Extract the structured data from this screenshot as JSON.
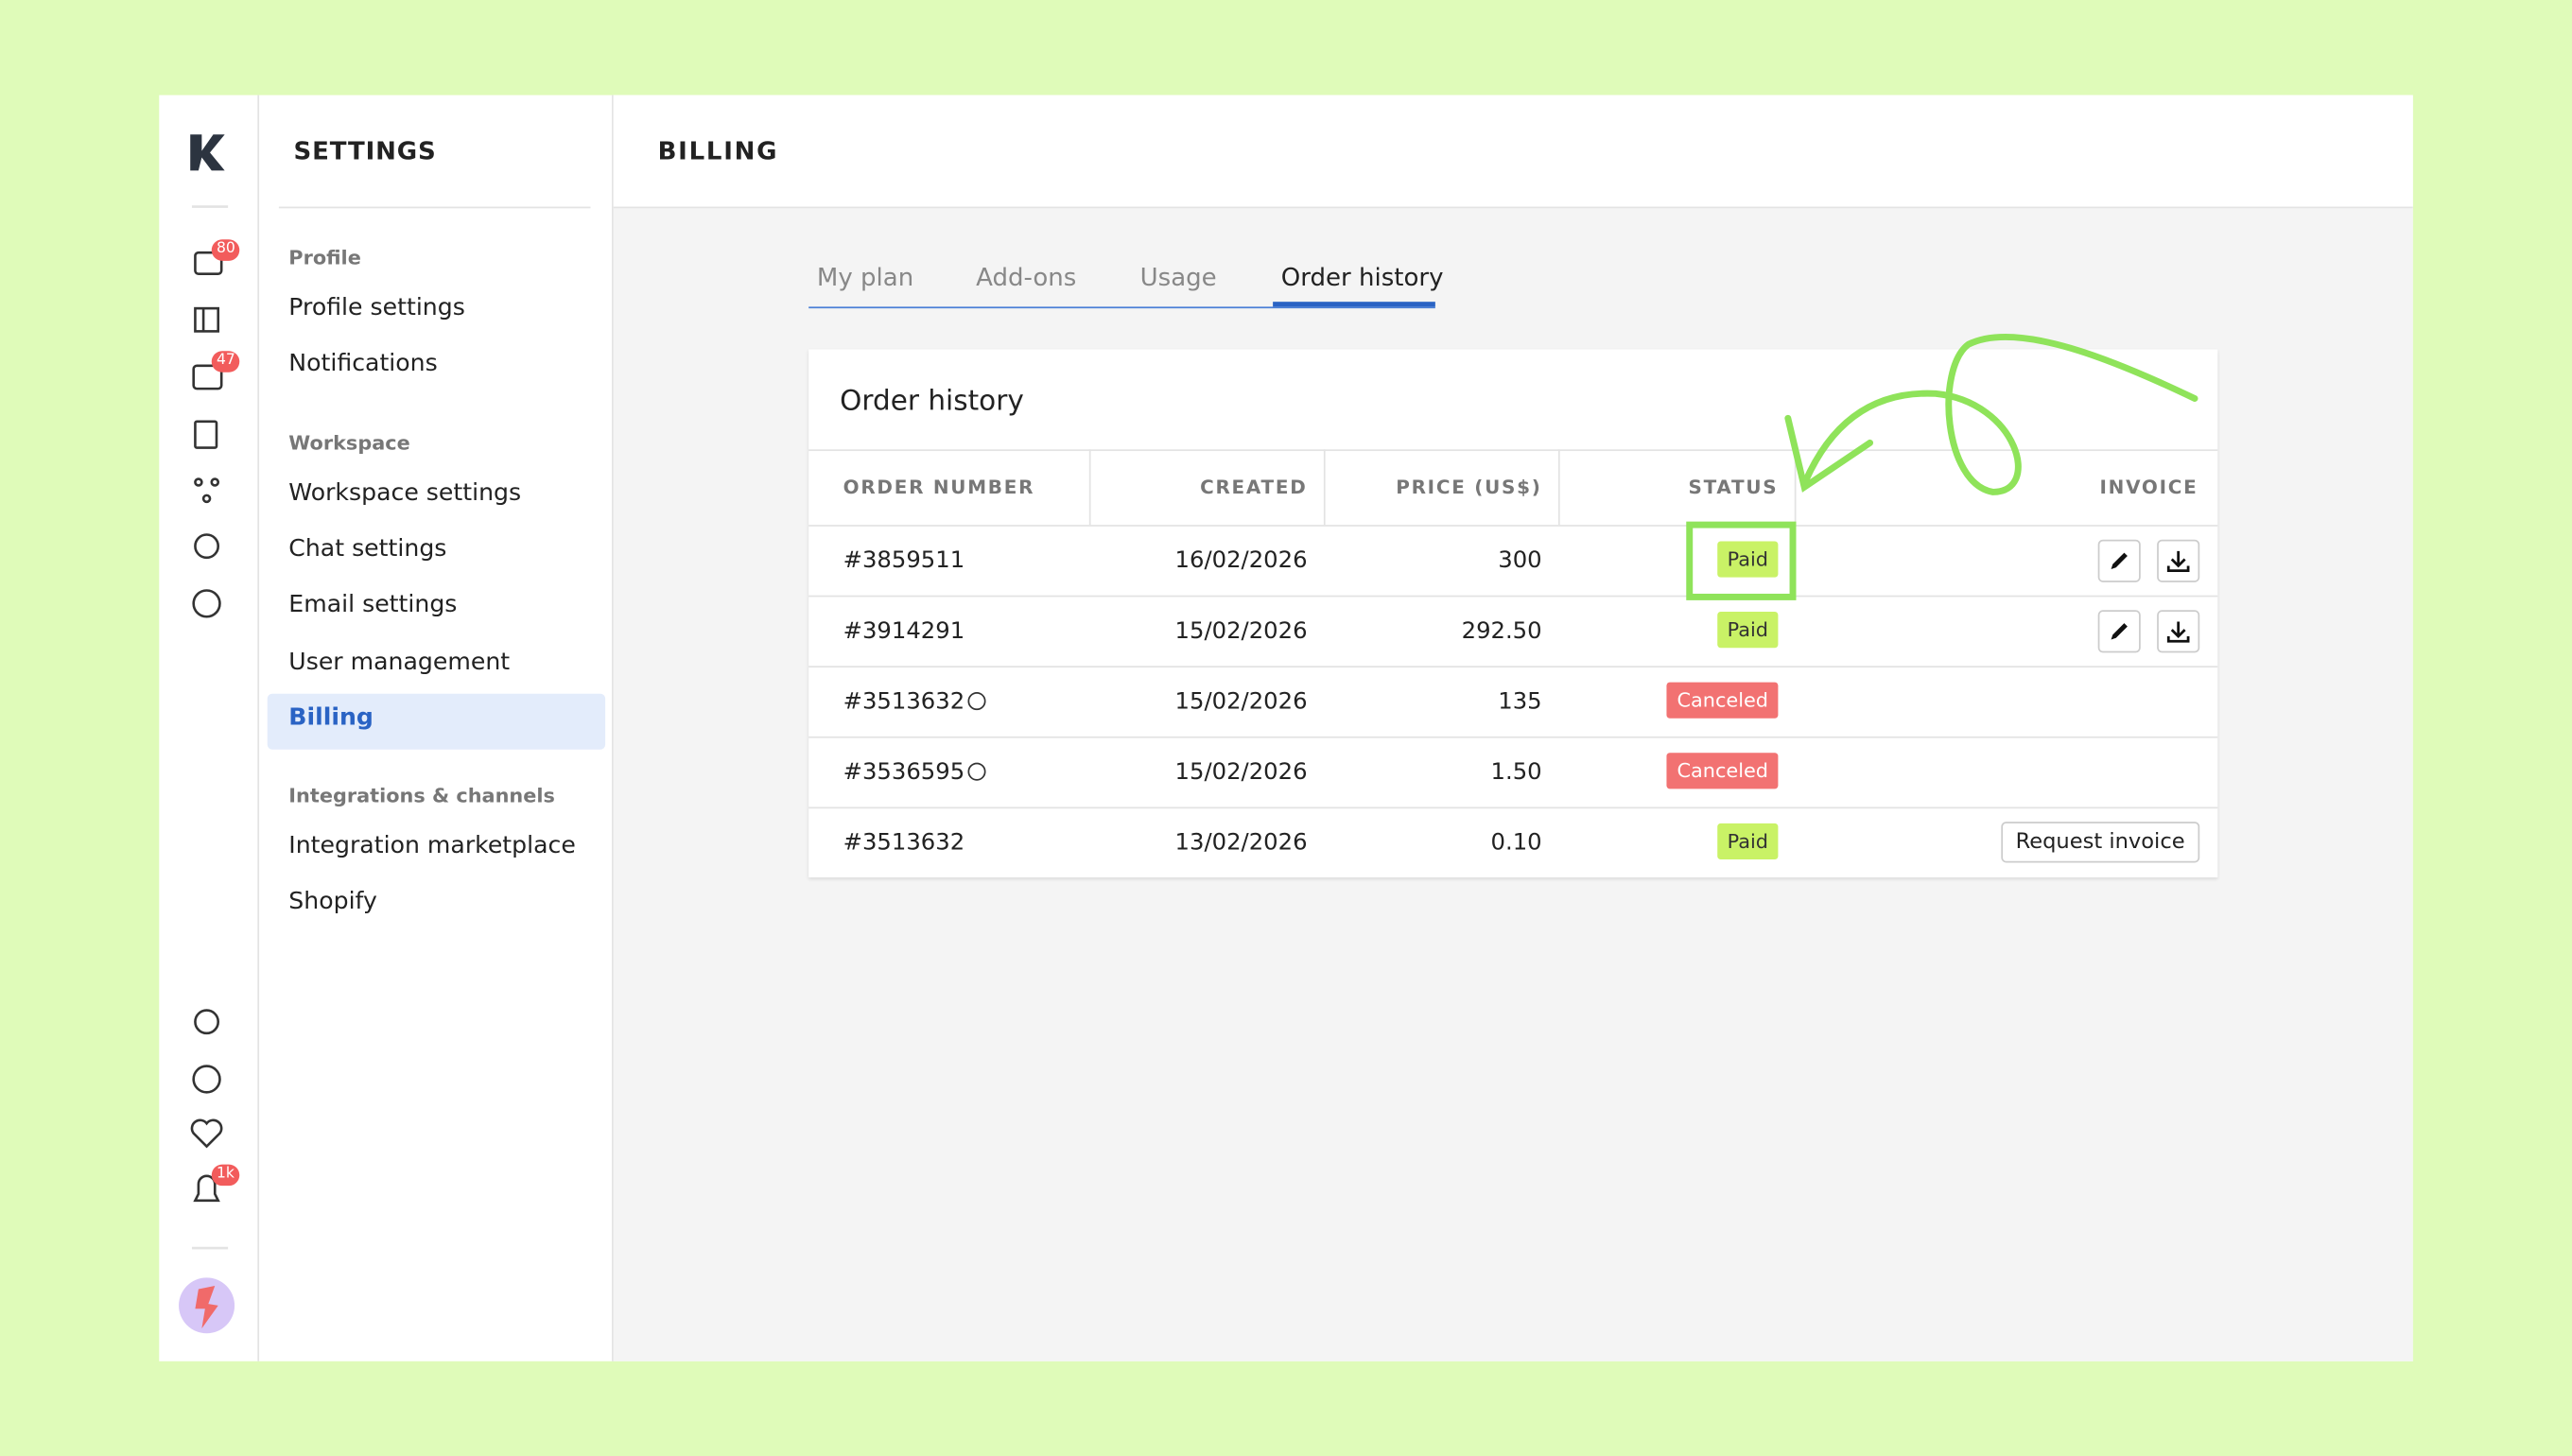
{
  "sidebar": {
    "title": "SETTINGS",
    "badges": [
      "80",
      "47",
      "1k"
    ],
    "sections": [
      {
        "heading": "Profile",
        "items": [
          "Profile settings",
          "Notifications"
        ]
      },
      {
        "heading": "Workspace",
        "items": [
          "Workspace settings",
          "Chat settings",
          "Email settings",
          "User management",
          "Billing"
        ]
      },
      {
        "heading": "Integrations & channels",
        "items": [
          "Integration marketplace",
          "Shopify"
        ]
      }
    ]
  },
  "header": {
    "title": "BILLING"
  },
  "tabs": [
    "My plan",
    "Add-ons",
    "Usage",
    "Order history"
  ],
  "card": {
    "title": "Order history",
    "columns": [
      "ORDER NUMBER",
      "CREATED",
      "PRICE (US$)",
      "STATUS",
      "INVOICE"
    ],
    "rows": [
      {
        "order": "#3859511",
        "help": false,
        "created": "16/02/2026",
        "price": "300",
        "status": "Paid",
        "status_color": "#c9f266",
        "invoice_actions": true
      },
      {
        "order": "#3914291",
        "help": false,
        "created": "15/02/2026",
        "price": "292.50",
        "status": "Paid",
        "status_color": "#c9f266",
        "invoice_actions": true
      },
      {
        "order": "#3513632",
        "help": true,
        "created": "15/02/2026",
        "price": "135",
        "status": "Canceled",
        "status_color": "#f27272",
        "invoice_actions": false
      },
      {
        "order": "#3536595",
        "help": true,
        "created": "15/02/2026",
        "price": "1.50",
        "status": "Canceled",
        "status_color": "#f27272",
        "invoice_actions": false
      },
      {
        "order": "#3513632",
        "help": false,
        "created": "13/02/2026",
        "price": "0.10",
        "status": "Paid",
        "status_color": "#c9f266",
        "invoice_actions": false,
        "invoice_button": "Request invoice"
      }
    ]
  }
}
